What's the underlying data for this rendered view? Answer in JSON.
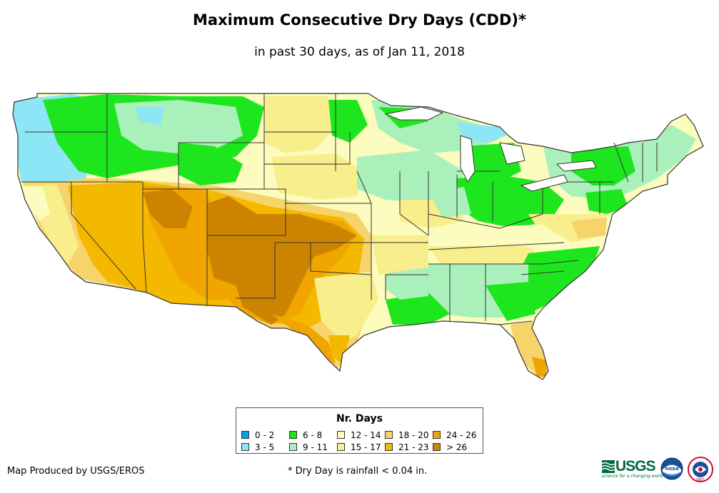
{
  "header": {
    "title": "Maximum Consecutive Dry Days (CDD)*",
    "subtitle": "in past 30 days, as of Jan 11, 2018"
  },
  "legend": {
    "title": "Nr. Days",
    "items": [
      {
        "label": "0 - 2",
        "color": "#00a0e6"
      },
      {
        "label": "6 - 8",
        "color": "#1ee61e"
      },
      {
        "label": "12 - 14",
        "color": "#fcfcbe"
      },
      {
        "label": "18 - 20",
        "color": "#f7d36b"
      },
      {
        "label": "24 - 26",
        "color": "#f0a500"
      },
      {
        "label": "3 - 5",
        "color": "#8ce6f5"
      },
      {
        "label": "9 - 11",
        "color": "#aaf0bb"
      },
      {
        "label": "15 - 17",
        "color": "#f8ee8c"
      },
      {
        "label": "21 - 23",
        "color": "#f5b800"
      },
      {
        "label": "> 26",
        "color": "#cc8400"
      }
    ]
  },
  "footer": {
    "credit": "Map Produced by USGS/EROS",
    "note": "* Dry Day is rainfall < 0.04 in."
  },
  "logos": {
    "usgs_text": "USGS",
    "usgs_tagline": "science for a changing world",
    "noaa_text": "noaa",
    "nws_text": "NWS"
  }
}
